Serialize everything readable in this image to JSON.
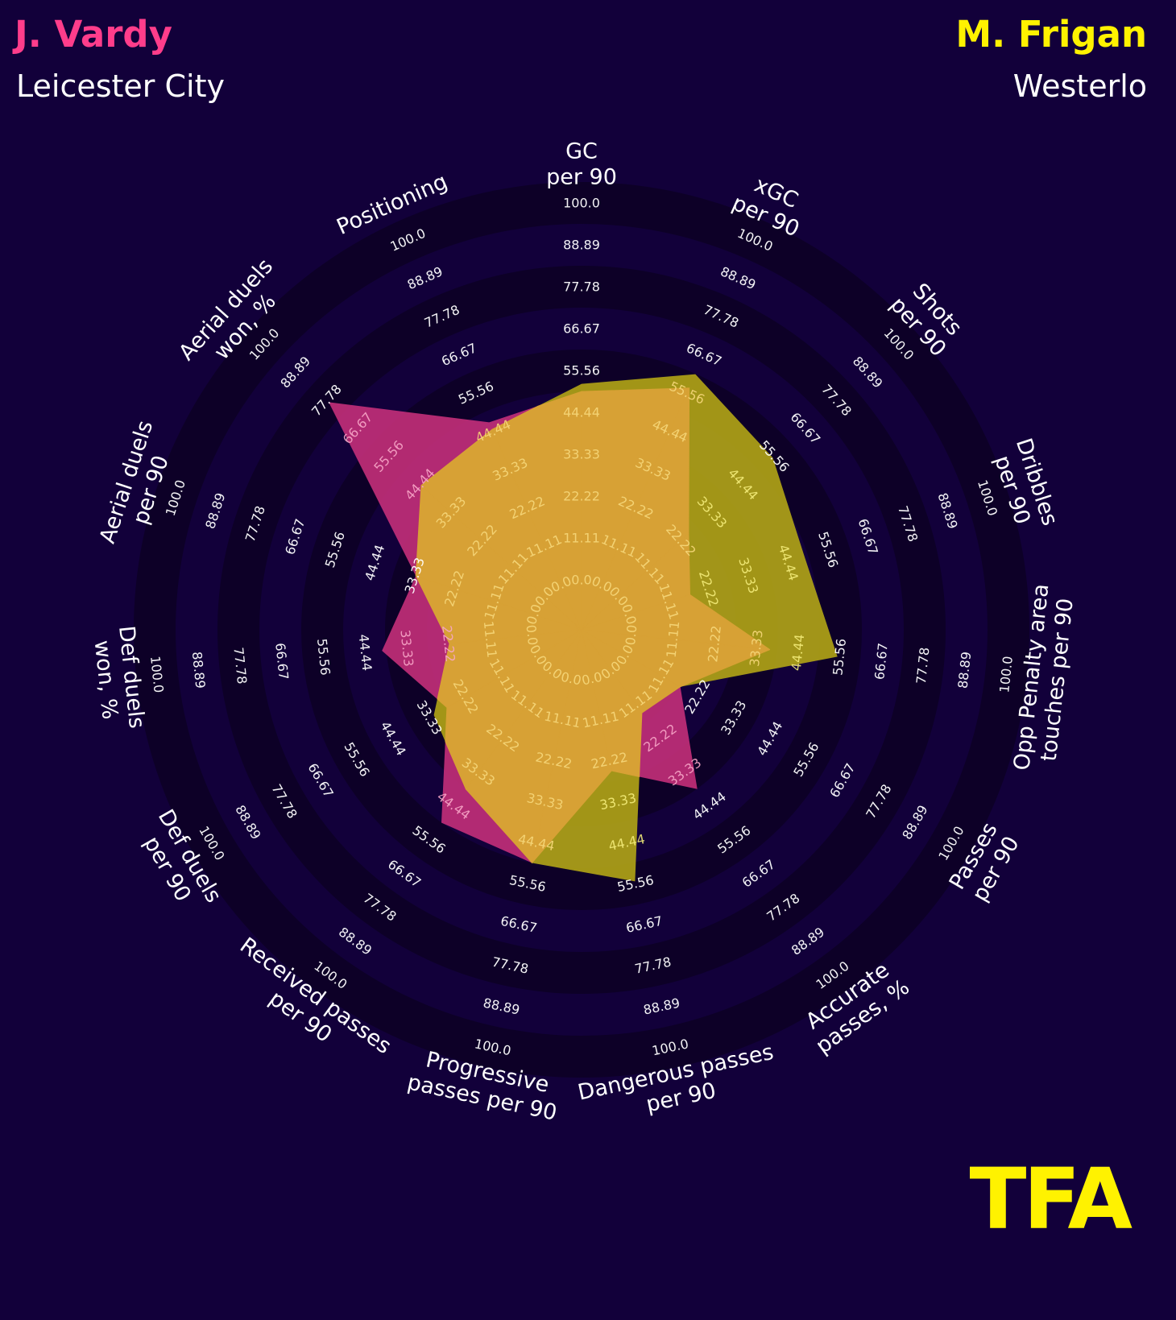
{
  "player1": {
    "name": "J. Vardy",
    "team": "Leicester City",
    "color": "#ff3d8b"
  },
  "player2": {
    "name": "M. Frigan",
    "team": "Westerlo",
    "color": "#fff200"
  },
  "logo": {
    "text": "TFA",
    "color": "#fff200"
  },
  "colors": {
    "background": "#12003a",
    "ring_dark": "#0d0027",
    "text": "#ffffff",
    "series1_fill": "#c42f7a",
    "series2_fill": "#b3a516",
    "overlap_fill": "#d7a135"
  },
  "chart_data": {
    "type": "radar",
    "title": "",
    "rlim": [
      0,
      100
    ],
    "rings": [
      "0.0",
      "11.11",
      "22.22",
      "33.33",
      "44.44",
      "55.56",
      "66.67",
      "77.78",
      "88.89",
      "100.0"
    ],
    "categories": [
      "GC\nper 90",
      "xGC\nper 90",
      "Shots\nper 90",
      "Dribbles\nper 90",
      "Opp Penalty area\ntouches per 90",
      "Passes\nper 90",
      "Accurate\npasses, %",
      "Dangerous passes\nper 90",
      "Progressive\npasses per 90",
      "Received passes\nper 90",
      "Def duels\nper 90",
      "Def duels\nwon, %",
      "Aerial duels\nper 90",
      "Aerial duels\nwon, %",
      "Positioning"
    ],
    "series": [
      {
        "name": "J. Vardy",
        "values": [
          50,
          57,
          25,
          17,
          37,
          17,
          39,
          25,
          50,
          50,
          28,
          40,
          33,
          77,
          47
        ]
      },
      {
        "name": "M. Frigan",
        "values": [
          52,
          61,
          55,
          49,
          55,
          17,
          14,
          55,
          50,
          39,
          32,
          22,
          33,
          44,
          45
        ]
      }
    ]
  }
}
